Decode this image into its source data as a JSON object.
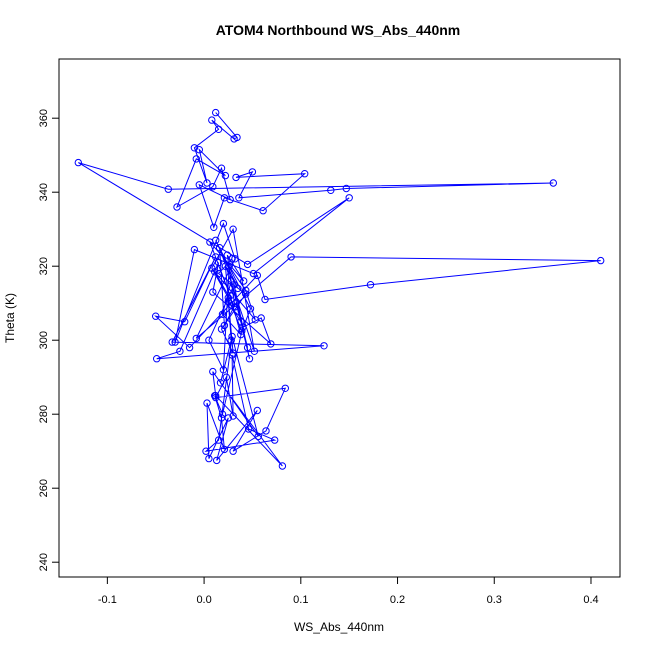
{
  "chart_data": {
    "type": "scatter",
    "title": "ATOM4 Northbound WS_Abs_440nm",
    "xlabel": "WS_Abs_440nm",
    "ylabel": "Theta (K)",
    "xlim": [
      -0.15,
      0.43
    ],
    "ylim": [
      236,
      376
    ],
    "xticks": [
      -0.1,
      0.0,
      0.1,
      0.2,
      0.3,
      0.4
    ],
    "xtick_labels": [
      "-0.1",
      "0.0",
      "0.1",
      "0.2",
      "0.3",
      "0.4"
    ],
    "yticks": [
      240,
      260,
      280,
      300,
      320,
      340,
      360
    ],
    "ytick_labels": [
      "240",
      "260",
      "280",
      "300",
      "320",
      "340",
      "360"
    ],
    "grid": false,
    "style": "points connected by lines (open circles)",
    "color": "#0000ff",
    "x": [
      0.012,
      0.034,
      0.031,
      0.008,
      0.015,
      -0.01,
      0.003,
      -0.005,
      0.022,
      -0.008,
      -0.028,
      0.009,
      0.018,
      0.027,
      -0.005,
      0.01,
      0.021,
      0.061,
      0.104,
      0.033,
      0.05,
      0.036,
      0.131,
      0.147,
      0.361,
      -0.037,
      -0.13,
      0.045,
      0.15,
      0.051,
      -0.01,
      -0.03,
      0.02,
      0.032,
      -0.008,
      0.09,
      0.41,
      0.172,
      0.063,
      0.055,
      -0.015,
      -0.05,
      -0.02,
      0.012,
      -0.033,
      0.124,
      -0.049,
      -0.025,
      0.015,
      0.009,
      0.069,
      0.059,
      0.04,
      0.019,
      0.011,
      0.018,
      0.021,
      0.003,
      0.005,
      0.025,
      0.013,
      0.055,
      0.03,
      0.064,
      0.084,
      0.012,
      0.023,
      0.03,
      0.029,
      0.046,
      0.073,
      0.002,
      0.015,
      0.029,
      0.056,
      0.009,
      0.012,
      0.081,
      0.017,
      0.028,
      0.025,
      0.038,
      0.047,
      0.031,
      0.005,
      0.02,
      0.026,
      0.043,
      0.053,
      0.011,
      0.032,
      0.024,
      0.041,
      0.006,
      0.027,
      0.038,
      0.019,
      0.028,
      0.045,
      0.033,
      0.021,
      0.016,
      0.052,
      0.03,
      0.008,
      0.025,
      0.039,
      0.048,
      0.012,
      0.035,
      0.022,
      0.03,
      0.018,
      0.043,
      0.015,
      0.029
    ],
    "y": [
      361.5,
      354.8,
      354.4,
      359.5,
      357.0,
      352.0,
      342.5,
      351.5,
      344.5,
      349.0,
      336.0,
      341.5,
      346.5,
      338.0,
      342.0,
      330.5,
      338.5,
      335.0,
      345.0,
      344.0,
      345.5,
      338.5,
      340.5,
      341.0,
      342.5,
      340.8,
      348.0,
      320.5,
      338.5,
      318.0,
      324.5,
      299.5,
      331.5,
      322.0,
      300.5,
      322.5,
      321.5,
      315.0,
      311.0,
      317.5,
      298.0,
      306.5,
      305.0,
      322.5,
      299.5,
      298.5,
      295.0,
      297.0,
      321.0,
      313.0,
      299.0,
      306.0,
      303.5,
      280.0,
      285.0,
      279.0,
      270.5,
      283.0,
      268.0,
      279.0,
      267.5,
      281.0,
      270.0,
      275.5,
      287.0,
      284.5,
      290.0,
      279.5,
      296.0,
      276.0,
      273.0,
      270.0,
      273.0,
      301.0,
      274.0,
      291.5,
      285.0,
      266.0,
      288.5,
      300.0,
      310.5,
      305.0,
      295.0,
      315.0,
      300.0,
      292.0,
      320.0,
      313.5,
      305.5,
      318.5,
      309.0,
      323.0,
      316.0,
      326.5,
      312.0,
      301.5,
      307.0,
      316.0,
      298.0,
      310.0,
      304.0,
      325.0,
      297.0,
      330.0,
      319.5,
      311.5,
      302.5,
      308.5,
      327.0,
      314.0,
      320.0,
      296.5,
      303.0,
      312.5,
      318.0,
      322.0
    ]
  }
}
